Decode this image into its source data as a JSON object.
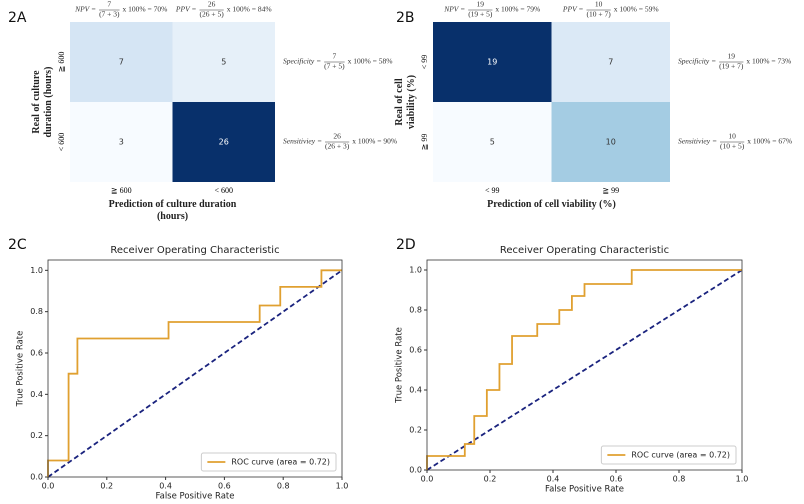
{
  "chart_data": [
    {
      "type": "heatmap",
      "panel": "2A",
      "colormap": "Blues",
      "ylabel": "Real of culture duration (hours)",
      "xlabel": "Prediction of culture duration (hours)",
      "rows": [
        "≧ 600",
        "< 600"
      ],
      "columns": [
        "≧ 600",
        "< 600"
      ],
      "values": [
        [
          7,
          5
        ],
        [
          3,
          26
        ]
      ],
      "annotations": {
        "top": [
          {
            "label": "NPV =",
            "numerator": "7",
            "denominator": "(7 + 3)",
            "result": "x 100% = 70%"
          },
          {
            "label": "PPV =",
            "numerator": "26",
            "denominator": "(26 + 5)",
            "result": "x 100% = 84%"
          }
        ],
        "right": [
          {
            "label": "Specificity =",
            "numerator": "7",
            "denominator": "(7 + 5)",
            "result": "x 100% = 58%"
          },
          {
            "label": "Sensitiviey =",
            "numerator": "26",
            "denominator": "(26 + 3)",
            "result": "x 100% = 90%"
          }
        ]
      }
    },
    {
      "type": "heatmap",
      "panel": "2B",
      "colormap": "Blues",
      "ylabel": "Real of cell viability (%)",
      "xlabel": "Prediction of cell viability (%)",
      "rows": [
        "< 99",
        "≧ 99"
      ],
      "columns": [
        "< 99",
        "≧ 99"
      ],
      "values": [
        [
          19,
          7
        ],
        [
          5,
          10
        ]
      ],
      "annotations": {
        "top": [
          {
            "label": "NPV =",
            "numerator": "19",
            "denominator": "(19 + 5)",
            "result": "x 100% = 79%"
          },
          {
            "label": "PPV =",
            "numerator": "10",
            "denominator": "(10 + 7)",
            "result": "x 100% = 59%"
          }
        ],
        "right": [
          {
            "label": "Specificity =",
            "numerator": "19",
            "denominator": "(19 + 7)",
            "result": "x 100% = 73%"
          },
          {
            "label": "Sensitiviey =",
            "numerator": "10",
            "denominator": "(10 + 5)",
            "result": "x 100% = 67%"
          }
        ]
      }
    },
    {
      "type": "line",
      "panel": "2C",
      "title": "Receiver Operating Characteristic",
      "xlabel": "False Positive Rate",
      "ylabel": "True Positive Rate",
      "xlim": [
        0,
        1
      ],
      "ylim": [
        0,
        1.05
      ],
      "legend": "lower right",
      "diagonal_color": "#1a237e",
      "xticks": [
        {
          "value": 0,
          "label": "0.0"
        },
        {
          "value": 0.2,
          "label": "0.2"
        },
        {
          "value": 0.4,
          "label": "0.4"
        },
        {
          "value": 0.6,
          "label": "0.6"
        },
        {
          "value": 0.8,
          "label": "0.8"
        },
        {
          "value": 1,
          "label": "1.0"
        }
      ],
      "yticks": [
        {
          "value": 0,
          "label": "0.0"
        },
        {
          "value": 0.2,
          "label": "0.2"
        },
        {
          "value": 0.4,
          "label": "0.4"
        },
        {
          "value": 0.6,
          "label": "0.6"
        },
        {
          "value": 0.8,
          "label": "0.8"
        },
        {
          "value": 1,
          "label": "1.0"
        }
      ],
      "series": [
        {
          "name": "ROC curve (area = 0.72)",
          "color": "#e0a030",
          "x": [
            0,
            0,
            0.07,
            0.07,
            0.1,
            0.1,
            0.41,
            0.41,
            0.72,
            0.72,
            0.79,
            0.79,
            0.93,
            0.93,
            1
          ],
          "values": [
            0,
            0.08,
            0.08,
            0.5,
            0.5,
            0.67,
            0.67,
            0.75,
            0.75,
            0.83,
            0.83,
            0.92,
            0.92,
            1,
            1
          ]
        }
      ]
    },
    {
      "type": "line",
      "panel": "2D",
      "title": "Receiver Operating Characteristic",
      "xlabel": "False Positive Rate",
      "ylabel": "True Positive Rate",
      "xlim": [
        0,
        1
      ],
      "ylim": [
        0,
        1.05
      ],
      "legend": "lower right",
      "diagonal_color": "#1a237e",
      "xticks": [
        {
          "value": 0,
          "label": "0.0"
        },
        {
          "value": 0.2,
          "label": "0.2"
        },
        {
          "value": 0.4,
          "label": "0.4"
        },
        {
          "value": 0.6,
          "label": "0.6"
        },
        {
          "value": 0.8,
          "label": "0.8"
        },
        {
          "value": 1,
          "label": "1.0"
        }
      ],
      "yticks": [
        {
          "value": 0,
          "label": "0.0"
        },
        {
          "value": 0.2,
          "label": "0.2"
        },
        {
          "value": 0.4,
          "label": "0.4"
        },
        {
          "value": 0.6,
          "label": "0.6"
        },
        {
          "value": 0.8,
          "label": "0.8"
        },
        {
          "value": 1,
          "label": "1.0"
        }
      ],
      "series": [
        {
          "name": "ROC curve (area = 0.72)",
          "color": "#e0a030",
          "x": [
            0,
            0,
            0.12,
            0.12,
            0.15,
            0.15,
            0.19,
            0.19,
            0.23,
            0.23,
            0.27,
            0.27,
            0.31,
            0.35,
            0.35,
            0.42,
            0.42,
            0.46,
            0.46,
            0.5,
            0.5,
            0.65,
            0.65,
            1
          ],
          "values": [
            0,
            0.07,
            0.07,
            0.13,
            0.13,
            0.27,
            0.27,
            0.4,
            0.4,
            0.53,
            0.53,
            0.67,
            0.67,
            0.67,
            0.73,
            0.73,
            0.8,
            0.8,
            0.87,
            0.87,
            0.93,
            0.93,
            1,
            1
          ]
        }
      ]
    }
  ]
}
